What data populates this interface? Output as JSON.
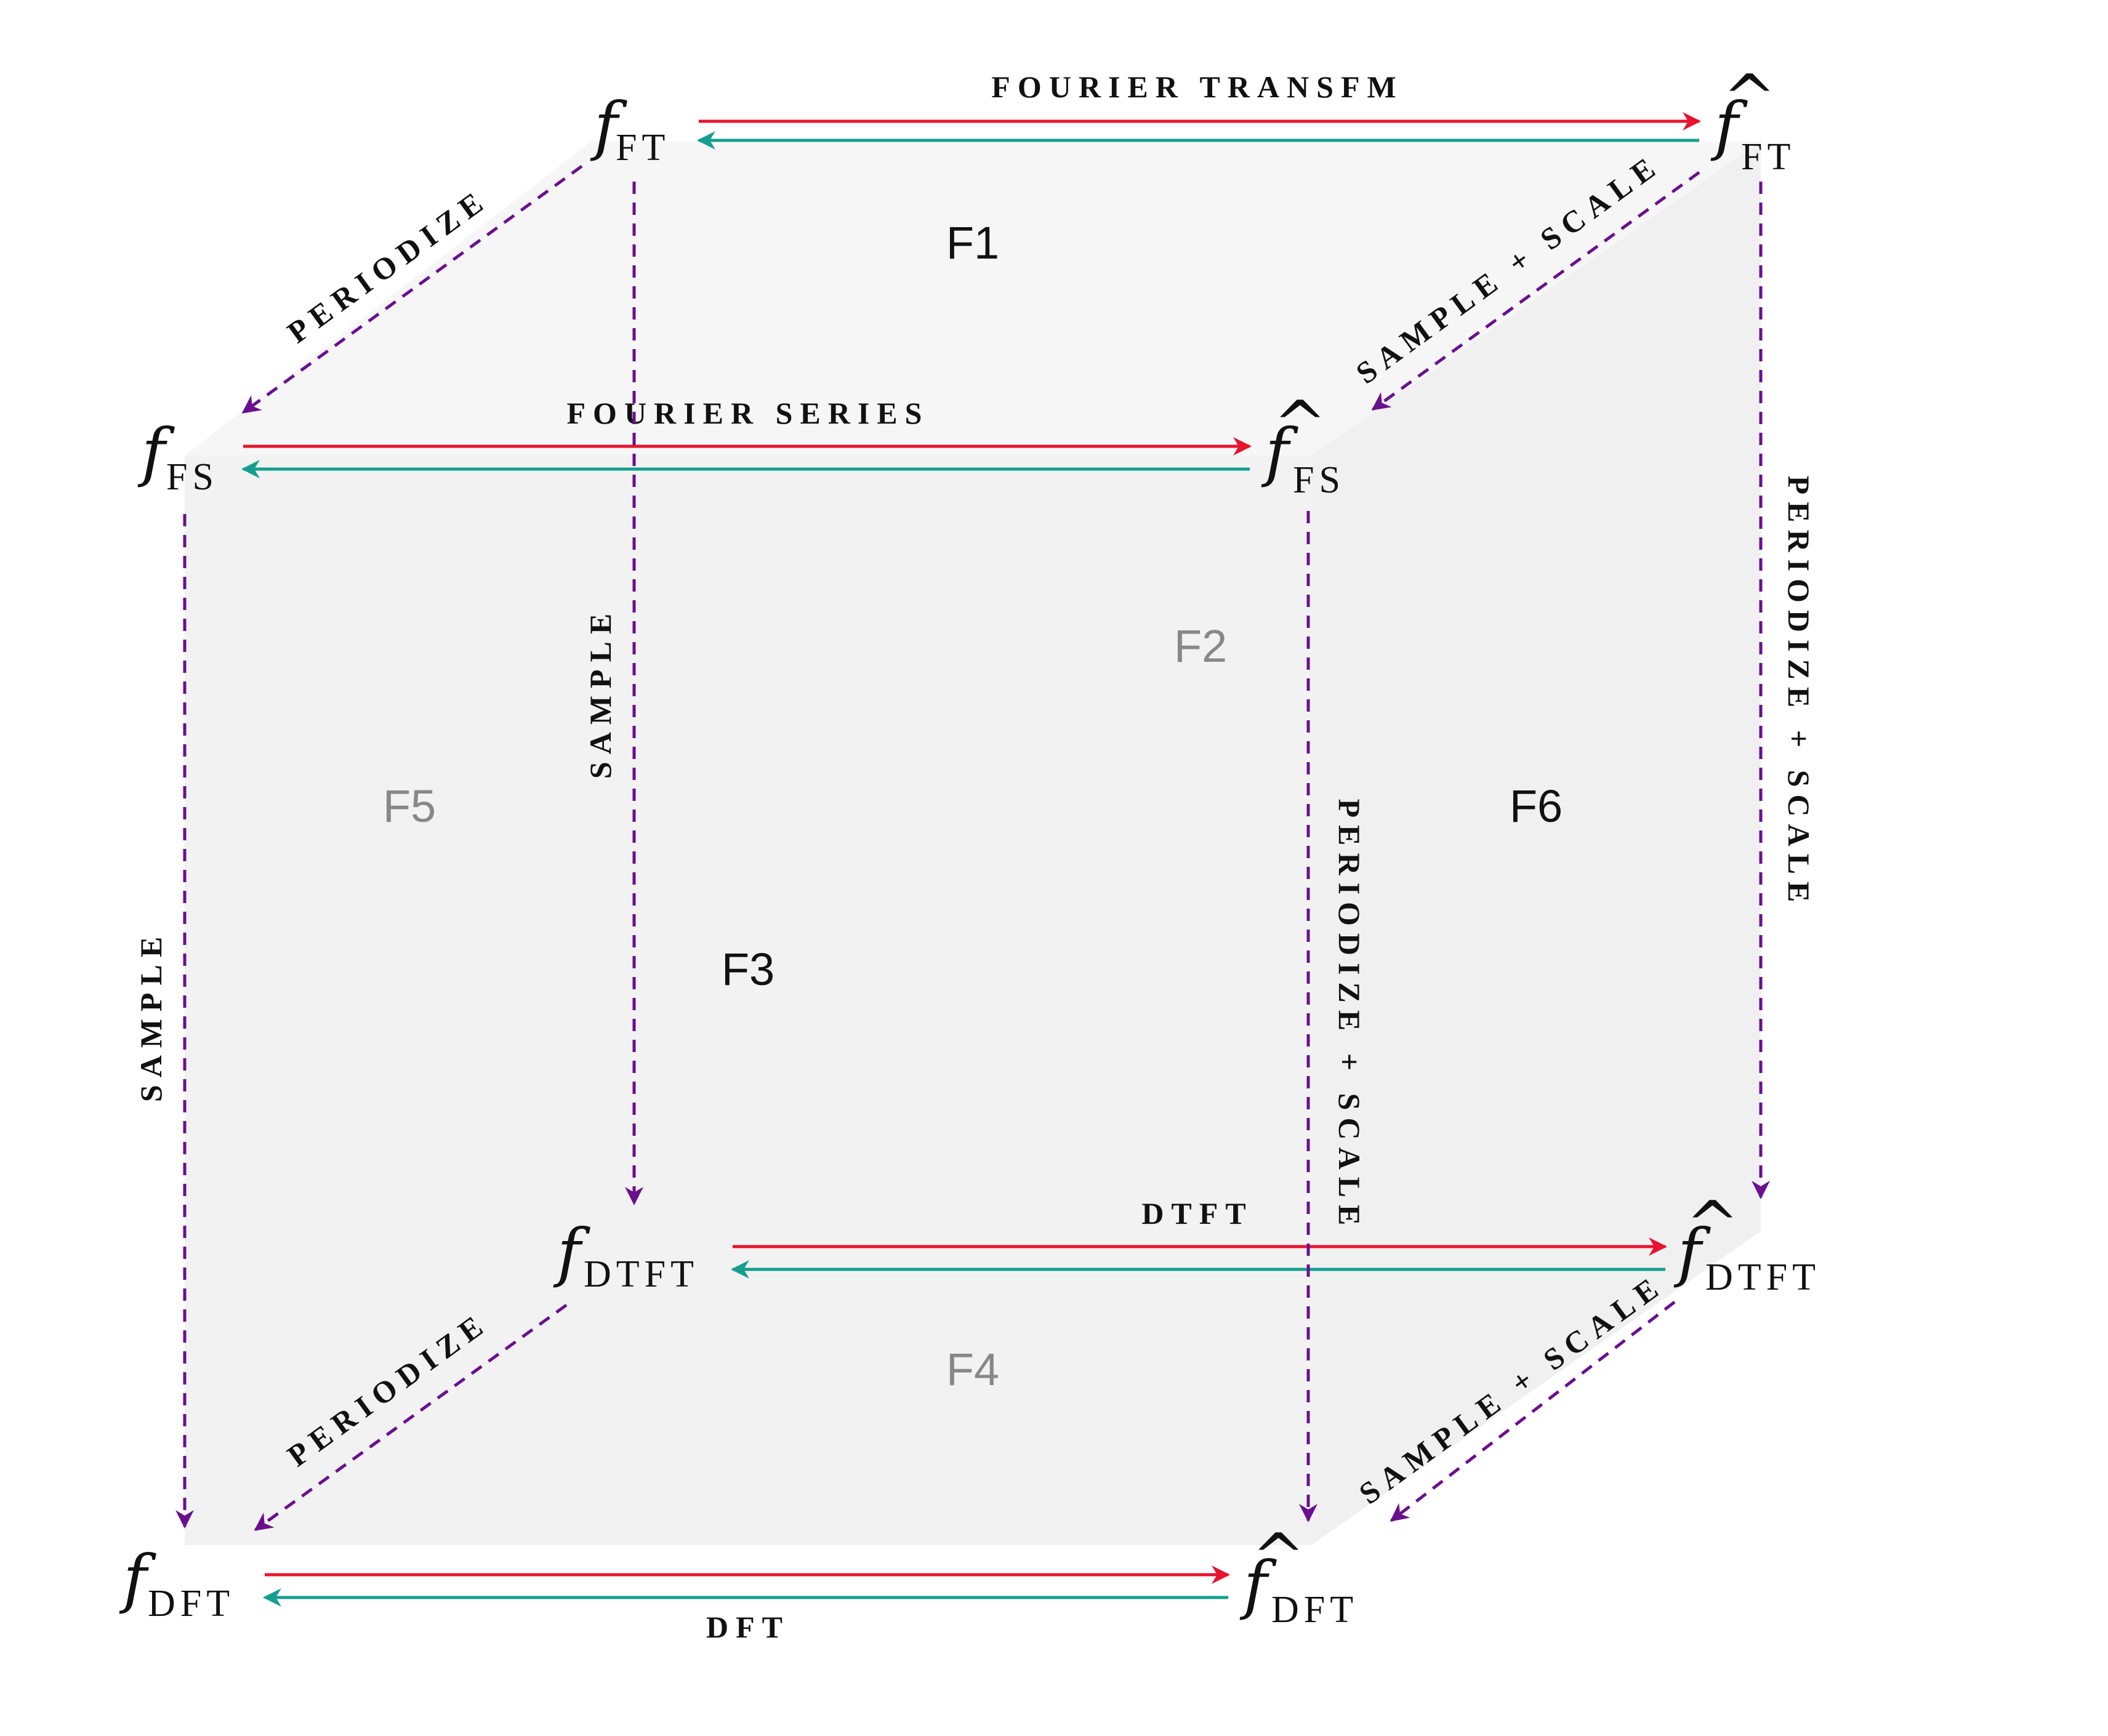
{
  "nodes": {
    "f_ft": {
      "f": "f",
      "hat": false,
      "sub": "FT"
    },
    "fhat_ft": {
      "f": "f",
      "hat": true,
      "sub": "FT"
    },
    "f_fs": {
      "f": "f",
      "hat": false,
      "sub": "FS"
    },
    "fhat_fs": {
      "f": "f",
      "hat": true,
      "sub": "FS"
    },
    "f_dtft": {
      "f": "f",
      "hat": false,
      "sub": "DTFT"
    },
    "fhat_dtft": {
      "f": "f",
      "hat": true,
      "sub": "DTFT"
    },
    "f_dft": {
      "f": "f",
      "hat": false,
      "sub": "DFT"
    },
    "fhat_dft": {
      "f": "f",
      "hat": true,
      "sub": "DFT"
    }
  },
  "edges": {
    "fourier_transform": "FOURIER TRANSFM",
    "fourier_series": "FOURIER SERIES",
    "dtft": "DTFT",
    "dft": "DFT",
    "periodize_top": "PERIODIZE",
    "periodize_bottom": "PERIODIZE",
    "sample_scale_top": "SAMPLE + SCALE",
    "sample_scale_bottom": "SAMPLE + SCALE",
    "sample_left": "SAMPLE",
    "sample_back": "SAMPLE",
    "periodize_scale_front": "PERIODIZE + SCALE",
    "periodize_scale_back": "PERIODIZE + SCALE"
  },
  "faces": {
    "f1": "F1",
    "f2": "F2",
    "f3": "F3",
    "f4": "F4",
    "f5": "F5",
    "f6": "F6"
  },
  "colors": {
    "forward_arrow": "#e8132e",
    "inverse_arrow": "#159e8f",
    "mapping_arrow": "#6a0f8e",
    "cube_face": "#f2f2f2"
  }
}
